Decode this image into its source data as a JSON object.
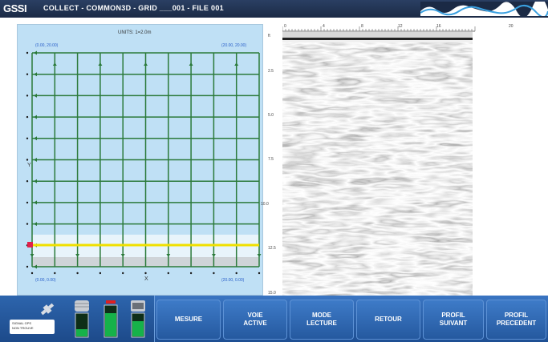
{
  "titlebar": {
    "logo": "GSSI",
    "title": "COLLECT - COMMON3D - GRID ___001 - FILE 001"
  },
  "grid_panel": {
    "unit_label": "UNITS: 1=2.0m",
    "corner_top_left": "(0.00, 20.00)",
    "corner_top_right": "(20.00, 20.00)",
    "corner_bottom_left": "(0.00, 0.00)",
    "corner_bottom_right": "(20.00, 0.00)",
    "y_axis_label": "Y",
    "x_axis_label": "X",
    "highlight_color": "#f0e000",
    "grid_color": "#2b7a3a"
  },
  "radargram": {
    "depth_ticks": [
      "ft",
      "2.5",
      "5.0",
      "7.5",
      "10.0",
      "12.5",
      "15.0"
    ],
    "distance_ticks": [
      "0",
      "4",
      "8",
      "12",
      "16",
      "20"
    ]
  },
  "status": {
    "gps_text_line1": "SIGNAL GPS",
    "gps_text_line2": "NON TROUVE"
  },
  "toolbar": {
    "measure": "MESURE",
    "active_channel_1": "VOIE",
    "active_channel_2": "ACTIVE",
    "read_mode_1": "MODE",
    "read_mode_2": "LECTURE",
    "back": "RETOUR",
    "next_profile_1": "PROFIL",
    "next_profile_2": "SUIVANT",
    "prev_profile_1": "PROFIL",
    "prev_profile_2": "PRECEDENT"
  }
}
